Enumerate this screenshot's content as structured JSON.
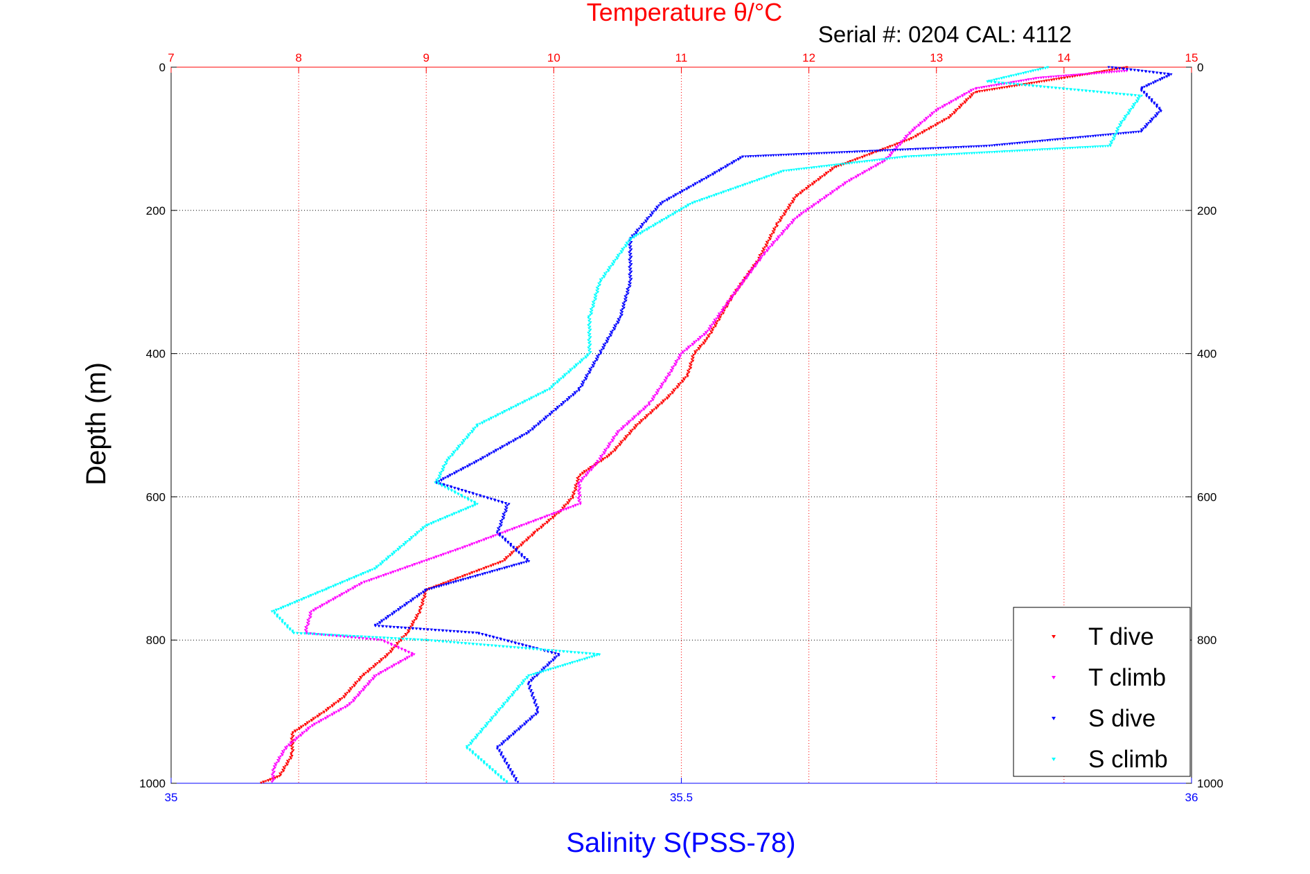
{
  "chart_data": {
    "type": "scatter",
    "title": "Temperature θ/°C",
    "annotation": "Serial #: 0204  CAL: 4112",
    "xlabel": "Salinity S(PSS-78)",
    "ylabel": "Depth (m)",
    "x_top": {
      "label": "Temperature θ/°C",
      "lim": [
        7,
        15
      ],
      "ticks": [
        "7",
        "8",
        "9",
        "10",
        "11",
        "12",
        "13",
        "14",
        "15"
      ],
      "color": "#ff0000"
    },
    "x_bottom": {
      "label": "Salinity S(PSS-78)",
      "lim": [
        35,
        36
      ],
      "ticks": [
        "35",
        "35.5",
        "36"
      ],
      "color": "#0000ff"
    },
    "y": {
      "lim": [
        0,
        1000
      ],
      "reversed": true,
      "ticks": [
        "0",
        "200",
        "400",
        "600",
        "800",
        "1000"
      ]
    },
    "grid": true,
    "legend_position": "bottom-right",
    "series": [
      {
        "name": "T dive",
        "axis": "temperature",
        "color": "#ff0000",
        "points": [
          [
            14.5,
            0
          ],
          [
            14.0,
            15
          ],
          [
            13.3,
            35
          ],
          [
            13.1,
            70
          ],
          [
            12.8,
            100
          ],
          [
            12.5,
            120
          ],
          [
            12.2,
            140
          ],
          [
            11.9,
            180
          ],
          [
            11.75,
            220
          ],
          [
            11.6,
            270
          ],
          [
            11.4,
            320
          ],
          [
            11.2,
            380
          ],
          [
            11.1,
            400
          ],
          [
            11.05,
            430
          ],
          [
            10.9,
            460
          ],
          [
            10.65,
            500
          ],
          [
            10.45,
            540
          ],
          [
            10.2,
            570
          ],
          [
            10.15,
            600
          ],
          [
            10.05,
            620
          ],
          [
            9.85,
            650
          ],
          [
            9.6,
            690
          ],
          [
            9.0,
            730
          ],
          [
            8.95,
            760
          ],
          [
            8.85,
            790
          ],
          [
            8.7,
            820
          ],
          [
            8.5,
            850
          ],
          [
            8.35,
            880
          ],
          [
            8.2,
            900
          ],
          [
            7.95,
            930
          ],
          [
            7.95,
            960
          ],
          [
            7.85,
            990
          ],
          [
            7.7,
            1000
          ]
        ]
      },
      {
        "name": "T climb",
        "axis": "temperature",
        "color": "#ff00ff",
        "points": [
          [
            14.5,
            5
          ],
          [
            13.8,
            15
          ],
          [
            13.3,
            30
          ],
          [
            13.0,
            60
          ],
          [
            12.8,
            90
          ],
          [
            12.6,
            130
          ],
          [
            12.3,
            160
          ],
          [
            11.9,
            210
          ],
          [
            11.65,
            260
          ],
          [
            11.4,
            320
          ],
          [
            11.2,
            370
          ],
          [
            11.0,
            400
          ],
          [
            10.9,
            430
          ],
          [
            10.75,
            470
          ],
          [
            10.5,
            510
          ],
          [
            10.35,
            550
          ],
          [
            10.2,
            580
          ],
          [
            10.2,
            610
          ],
          [
            9.9,
            630
          ],
          [
            9.3,
            670
          ],
          [
            8.5,
            720
          ],
          [
            8.1,
            760
          ],
          [
            8.05,
            790
          ],
          [
            8.65,
            800
          ],
          [
            8.9,
            820
          ],
          [
            8.6,
            850
          ],
          [
            8.4,
            890
          ],
          [
            8.1,
            920
          ],
          [
            7.9,
            950
          ],
          [
            7.8,
            980
          ],
          [
            7.8,
            1000
          ]
        ]
      },
      {
        "name": "S dive",
        "axis": "salinity",
        "color": "#0000ff",
        "points": [
          [
            35.92,
            0
          ],
          [
            35.98,
            10
          ],
          [
            35.95,
            30
          ],
          [
            35.97,
            60
          ],
          [
            35.95,
            90
          ],
          [
            35.8,
            110
          ],
          [
            35.56,
            125
          ],
          [
            35.53,
            150
          ],
          [
            35.48,
            190
          ],
          [
            35.45,
            240
          ],
          [
            35.45,
            300
          ],
          [
            35.44,
            350
          ],
          [
            35.42,
            400
          ],
          [
            35.4,
            450
          ],
          [
            35.35,
            510
          ],
          [
            35.3,
            550
          ],
          [
            35.26,
            580
          ],
          [
            35.33,
            610
          ],
          [
            35.32,
            650
          ],
          [
            35.35,
            690
          ],
          [
            35.25,
            730
          ],
          [
            35.2,
            780
          ],
          [
            35.3,
            790
          ],
          [
            35.38,
            820
          ],
          [
            35.35,
            860
          ],
          [
            35.36,
            900
          ],
          [
            35.32,
            950
          ],
          [
            35.34,
            1000
          ]
        ]
      },
      {
        "name": "S climb",
        "axis": "salinity",
        "color": "#00ffff",
        "points": [
          [
            35.86,
            0
          ],
          [
            35.8,
            20
          ],
          [
            35.95,
            40
          ],
          [
            35.93,
            80
          ],
          [
            35.92,
            110
          ],
          [
            35.72,
            125
          ],
          [
            35.6,
            145
          ],
          [
            35.51,
            190
          ],
          [
            35.45,
            240
          ],
          [
            35.42,
            300
          ],
          [
            35.41,
            350
          ],
          [
            35.41,
            400
          ],
          [
            35.37,
            450
          ],
          [
            35.3,
            500
          ],
          [
            35.27,
            550
          ],
          [
            35.26,
            580
          ],
          [
            35.3,
            610
          ],
          [
            35.25,
            640
          ],
          [
            35.2,
            700
          ],
          [
            35.15,
            730
          ],
          [
            35.1,
            760
          ],
          [
            35.12,
            790
          ],
          [
            35.25,
            800
          ],
          [
            35.42,
            820
          ],
          [
            35.35,
            850
          ],
          [
            35.32,
            900
          ],
          [
            35.29,
            950
          ],
          [
            35.33,
            1000
          ]
        ]
      }
    ]
  }
}
